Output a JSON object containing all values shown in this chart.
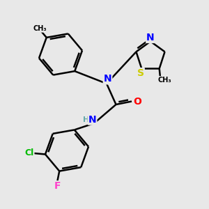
{
  "bg_color": "#e8e8e8",
  "atom_colors": {
    "N": "#0000ff",
    "O": "#ff0000",
    "S": "#cccc00",
    "Cl": "#00bb00",
    "F": "#ff44cc",
    "C": "#000000",
    "H": "#66aaaa"
  },
  "bond_color": "#000000",
  "bond_width": 1.8,
  "figsize": [
    3.0,
    3.0
  ],
  "dpi": 100,
  "xlim": [
    0,
    10
  ],
  "ylim": [
    0,
    10
  ]
}
